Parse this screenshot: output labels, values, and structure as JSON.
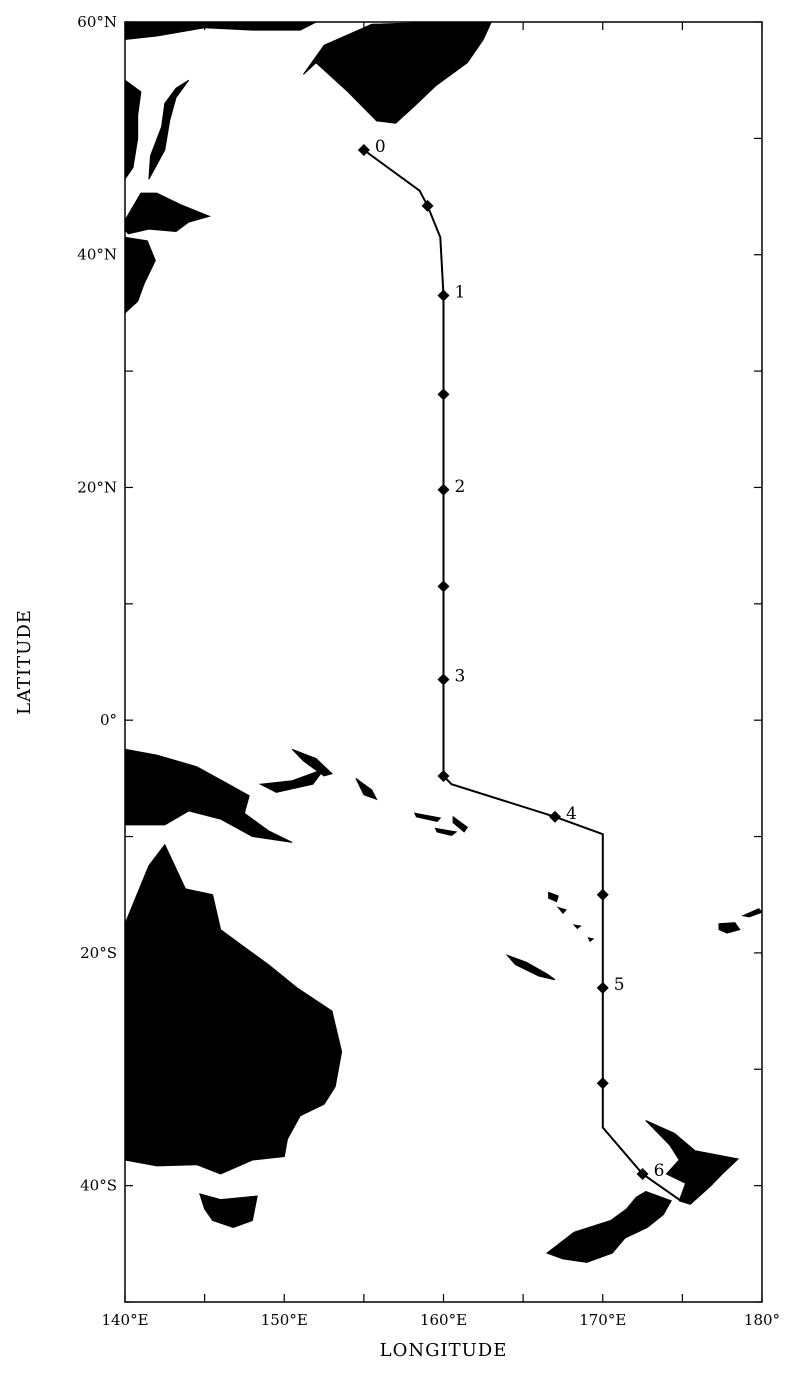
{
  "map": {
    "xlabel": "LONGITUDE",
    "ylabel": "LATITUDE",
    "lon_range": [
      140,
      180
    ],
    "lat_range": [
      -50,
      60
    ],
    "colors": {
      "land": "#000000",
      "ocean": "#ffffff",
      "track": "#000000"
    },
    "x_ticks": [
      {
        "value": 140,
        "label": "140°E"
      },
      {
        "value": 150,
        "label": "150°E"
      },
      {
        "value": 160,
        "label": "160°E"
      },
      {
        "value": 170,
        "label": "170°E"
      },
      {
        "value": 180,
        "label": "180°"
      }
    ],
    "y_ticks": [
      {
        "value": 60,
        "label": "60°N"
      },
      {
        "value": 40,
        "label": "40°N"
      },
      {
        "value": 20,
        "label": "20°N"
      },
      {
        "value": 0,
        "label": "0°"
      },
      {
        "value": -20,
        "label": "20°S"
      },
      {
        "value": -40,
        "label": "40°S"
      }
    ],
    "track": [
      {
        "lon": 155.0,
        "lat": 49.0
      },
      {
        "lon": 156.5,
        "lat": 47.5
      },
      {
        "lon": 158.5,
        "lat": 45.5
      },
      {
        "lon": 159.0,
        "lat": 44.2
      },
      {
        "lon": 159.8,
        "lat": 41.5
      },
      {
        "lon": 160.0,
        "lat": 36.5
      },
      {
        "lon": 160.0,
        "lat": 28.0
      },
      {
        "lon": 160.0,
        "lat": 19.8
      },
      {
        "lon": 160.0,
        "lat": 11.5
      },
      {
        "lon": 160.0,
        "lat": 3.5
      },
      {
        "lon": 160.0,
        "lat": -4.8
      },
      {
        "lon": 160.5,
        "lat": -5.5
      },
      {
        "lon": 167.0,
        "lat": -8.3
      },
      {
        "lon": 170.0,
        "lat": -9.8
      },
      {
        "lon": 170.0,
        "lat": -15.0
      },
      {
        "lon": 170.0,
        "lat": -23.0
      },
      {
        "lon": 170.0,
        "lat": -31.2
      },
      {
        "lon": 170.0,
        "lat": -35.0
      },
      {
        "lon": 172.5,
        "lat": -39.0
      },
      {
        "lon": 174.8,
        "lat": -41.2
      }
    ],
    "markers": [
      {
        "lon": 155.0,
        "lat": 49.0,
        "label": "0"
      },
      {
        "lon": 159.0,
        "lat": 44.2,
        "label": ""
      },
      {
        "lon": 160.0,
        "lat": 36.5,
        "label": "1"
      },
      {
        "lon": 160.0,
        "lat": 28.0,
        "label": ""
      },
      {
        "lon": 160.0,
        "lat": 19.8,
        "label": "2"
      },
      {
        "lon": 160.0,
        "lat": 11.5,
        "label": ""
      },
      {
        "lon": 160.0,
        "lat": 3.5,
        "label": "3"
      },
      {
        "lon": 160.0,
        "lat": -4.8,
        "label": ""
      },
      {
        "lon": 167.0,
        "lat": -8.3,
        "label": "4"
      },
      {
        "lon": 170.0,
        "lat": -15.0,
        "label": ""
      },
      {
        "lon": 170.0,
        "lat": -23.0,
        "label": "5"
      },
      {
        "lon": 170.0,
        "lat": -31.2,
        "label": ""
      },
      {
        "lon": 172.5,
        "lat": -39.0,
        "label": "6"
      }
    ],
    "land": [
      {
        "name": "kamchatka",
        "coords": [
          [
            151.2,
            55.5
          ],
          [
            152.5,
            58
          ],
          [
            155.5,
            59.8
          ],
          [
            160,
            60
          ],
          [
            163,
            60
          ],
          [
            162.5,
            58.5
          ],
          [
            161.5,
            56.5
          ],
          [
            159.5,
            54.5
          ],
          [
            158.2,
            52.8
          ],
          [
            157,
            51.3
          ],
          [
            155.8,
            51.5
          ],
          [
            154,
            54
          ],
          [
            152,
            56.5
          ]
        ]
      },
      {
        "name": "siberia-coast",
        "coords": [
          [
            140,
            60
          ],
          [
            152,
            60
          ],
          [
            151,
            59.3
          ],
          [
            148,
            59.3
          ],
          [
            145,
            59.5
          ],
          [
            142,
            58.8
          ],
          [
            140,
            58.5
          ]
        ]
      },
      {
        "name": "sakhalin",
        "coords": [
          [
            141.5,
            46.5
          ],
          [
            142.5,
            49
          ],
          [
            142.8,
            51.5
          ],
          [
            143.2,
            53.5
          ],
          [
            144,
            55
          ],
          [
            143.2,
            54.3
          ],
          [
            142.5,
            53
          ],
          [
            142.3,
            51
          ],
          [
            141.6,
            48.5
          ]
        ]
      },
      {
        "name": "manchuria-coast",
        "coords": [
          [
            140,
            55
          ],
          [
            141,
            54
          ],
          [
            140.8,
            52
          ],
          [
            140.8,
            50
          ],
          [
            140.5,
            47.5
          ],
          [
            140,
            46.5
          ]
        ]
      },
      {
        "name": "hokkaido",
        "coords": [
          [
            139.8,
            42.5
          ],
          [
            141,
            45.3
          ],
          [
            142,
            45.3
          ],
          [
            143.5,
            44.3
          ],
          [
            145.3,
            43.3
          ],
          [
            144,
            42.8
          ],
          [
            143.2,
            42
          ],
          [
            141.5,
            42.2
          ],
          [
            140.2,
            41.8
          ]
        ]
      },
      {
        "name": "honshu",
        "coords": [
          [
            140,
            41.5
          ],
          [
            141.4,
            41.2
          ],
          [
            141.9,
            39.5
          ],
          [
            141.2,
            37.5
          ],
          [
            140.8,
            36
          ],
          [
            140,
            35
          ]
        ]
      },
      {
        "name": "new-guinea",
        "coords": [
          [
            140,
            -2.5
          ],
          [
            142,
            -3
          ],
          [
            144.5,
            -4
          ],
          [
            146.5,
            -5.5
          ],
          [
            147.8,
            -6.5
          ],
          [
            147.5,
            -8
          ],
          [
            149,
            -9.5
          ],
          [
            150.5,
            -10.5
          ],
          [
            148,
            -10
          ],
          [
            146,
            -8.5
          ],
          [
            144,
            -7.8
          ],
          [
            142.5,
            -9
          ],
          [
            140,
            -9
          ]
        ]
      },
      {
        "name": "new-britain",
        "coords": [
          [
            148.5,
            -5.5
          ],
          [
            150.5,
            -5.2
          ],
          [
            152.5,
            -4.2
          ],
          [
            151.8,
            -5.5
          ],
          [
            149.5,
            -6.2
          ]
        ]
      },
      {
        "name": "new-ireland",
        "coords": [
          [
            150.5,
            -2.5
          ],
          [
            152,
            -3.3
          ],
          [
            153,
            -4.6
          ],
          [
            152.5,
            -4.8
          ],
          [
            151.2,
            -3.5
          ]
        ]
      },
      {
        "name": "australia",
        "coords": [
          [
            140,
            -17.5
          ],
          [
            141.5,
            -12.5
          ],
          [
            142.5,
            -10.7
          ],
          [
            143.8,
            -14.5
          ],
          [
            145.5,
            -15
          ],
          [
            146,
            -18
          ],
          [
            147.5,
            -19.5
          ],
          [
            149,
            -21
          ],
          [
            150.8,
            -23
          ],
          [
            153,
            -25
          ],
          [
            153.6,
            -28.5
          ],
          [
            153.2,
            -31.5
          ],
          [
            152.5,
            -33
          ],
          [
            151,
            -34
          ],
          [
            150.2,
            -36
          ],
          [
            150,
            -37.5
          ],
          [
            148,
            -37.8
          ],
          [
            146,
            -39
          ],
          [
            144.5,
            -38.2
          ],
          [
            142,
            -38.3
          ],
          [
            140,
            -37.8
          ]
        ]
      },
      {
        "name": "tasmania",
        "coords": [
          [
            144.7,
            -40.7
          ],
          [
            146,
            -41.2
          ],
          [
            148.3,
            -40.9
          ],
          [
            148,
            -43
          ],
          [
            146.8,
            -43.6
          ],
          [
            145.5,
            -43
          ],
          [
            145,
            -42
          ]
        ]
      },
      {
        "name": "nz-north-island",
        "coords": [
          [
            172.7,
            -34.4
          ],
          [
            174.5,
            -35.5
          ],
          [
            175.8,
            -37
          ],
          [
            178.5,
            -37.7
          ],
          [
            177.5,
            -39
          ],
          [
            176.8,
            -40
          ],
          [
            175.5,
            -41.6
          ],
          [
            174.8,
            -41.3
          ],
          [
            175.2,
            -39.8
          ],
          [
            174,
            -39
          ],
          [
            174.8,
            -37.8
          ],
          [
            174.2,
            -36.5
          ]
        ]
      },
      {
        "name": "nz-south-island",
        "coords": [
          [
            172.7,
            -40.5
          ],
          [
            174.3,
            -41.3
          ],
          [
            173.8,
            -42.5
          ],
          [
            172.8,
            -43.6
          ],
          [
            171.4,
            -44.5
          ],
          [
            170.6,
            -45.8
          ],
          [
            169,
            -46.6
          ],
          [
            167.5,
            -46.3
          ],
          [
            166.5,
            -45.8
          ],
          [
            168.2,
            -44
          ],
          [
            170.5,
            -43
          ],
          [
            171.5,
            -42
          ],
          [
            172.1,
            -41
          ]
        ]
      },
      {
        "name": "new-caledonia",
        "coords": [
          [
            164,
            -20.2
          ],
          [
            165.2,
            -20.8
          ],
          [
            166.5,
            -21.8
          ],
          [
            167,
            -22.3
          ],
          [
            166,
            -22
          ],
          [
            164.5,
            -21
          ]
        ]
      },
      {
        "name": "fiji-viti-levu",
        "coords": [
          [
            177.3,
            -17.5
          ],
          [
            178.3,
            -17.4
          ],
          [
            178.6,
            -18
          ],
          [
            177.8,
            -18.3
          ],
          [
            177.3,
            -18
          ]
        ]
      },
      {
        "name": "fiji-vanua-levu",
        "coords": [
          [
            178.8,
            -16.8
          ],
          [
            179.8,
            -16.2
          ],
          [
            180,
            -16.5
          ],
          [
            179.2,
            -16.9
          ]
        ]
      },
      {
        "name": "bougainville",
        "coords": [
          [
            154.5,
            -5
          ],
          [
            155.5,
            -6
          ],
          [
            155.8,
            -6.8
          ],
          [
            155,
            -6.4
          ]
        ]
      },
      {
        "name": "guadalcanal",
        "coords": [
          [
            159.5,
            -9.3
          ],
          [
            160.8,
            -9.6
          ],
          [
            160.5,
            -9.9
          ],
          [
            159.6,
            -9.6
          ]
        ]
      },
      {
        "name": "malaita",
        "coords": [
          [
            160.6,
            -8.3
          ],
          [
            161.5,
            -9.2
          ],
          [
            161.3,
            -9.6
          ],
          [
            160.6,
            -8.8
          ]
        ]
      },
      {
        "name": "santa-isabel",
        "coords": [
          [
            158.2,
            -8
          ],
          [
            159.8,
            -8.4
          ],
          [
            159.6,
            -8.7
          ],
          [
            158.3,
            -8.3
          ]
        ]
      },
      {
        "name": "vanuatu-espiritu",
        "coords": [
          [
            166.6,
            -14.8
          ],
          [
            167.2,
            -15.1
          ],
          [
            167.1,
            -15.6
          ],
          [
            166.6,
            -15.3
          ]
        ]
      },
      {
        "name": "vanuatu-malekula",
        "coords": [
          [
            167.2,
            -16.1
          ],
          [
            167.7,
            -16.3
          ],
          [
            167.5,
            -16.6
          ]
        ]
      },
      {
        "name": "vanuatu-efate",
        "coords": [
          [
            168.2,
            -17.6
          ],
          [
            168.6,
            -17.7
          ],
          [
            168.4,
            -17.9
          ]
        ]
      },
      {
        "name": "vanuatu-south",
        "coords": [
          [
            169.1,
            -18.7
          ],
          [
            169.4,
            -18.8
          ],
          [
            169.2,
            -19
          ]
        ]
      }
    ]
  }
}
